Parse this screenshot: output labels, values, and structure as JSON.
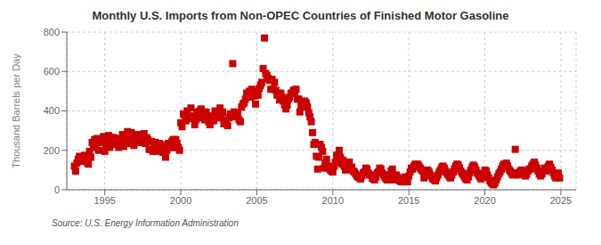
{
  "chart_data": {
    "type": "scatter",
    "title": "Monthly U.S. Imports from Non-OPEC Countries of Finished Motor Gasoline",
    "y_label": "Thousand Barrels per Day",
    "annotations": [
      "Source: U.S. Energy Information Administration"
    ],
    "color": "#CC0000",
    "marker": "square",
    "grid": true,
    "xlim": [
      1992.5,
      2026.0
    ],
    "xticks": [
      1995,
      2000,
      2005,
      2010,
      2015,
      2020,
      2025
    ],
    "ylim": [
      0,
      800
    ],
    "yticks": [
      0,
      200,
      400,
      600,
      800
    ],
    "x": [
      1993.0,
      1993.083,
      1993.167,
      1993.25,
      1993.333,
      1993.417,
      1993.5,
      1993.583,
      1993.667,
      1993.75,
      1993.833,
      1993.917,
      1994.0,
      1994.083,
      1994.167,
      1994.25,
      1994.333,
      1994.417,
      1994.5,
      1994.583,
      1994.667,
      1994.75,
      1994.833,
      1994.917,
      1995.0,
      1995.083,
      1995.167,
      1995.25,
      1995.333,
      1995.417,
      1995.5,
      1995.583,
      1995.667,
      1995.75,
      1995.833,
      1995.917,
      1996.0,
      1996.083,
      1996.167,
      1996.25,
      1996.333,
      1996.417,
      1996.5,
      1996.583,
      1996.667,
      1996.75,
      1996.833,
      1996.917,
      1997.0,
      1997.083,
      1997.167,
      1997.25,
      1997.333,
      1997.417,
      1997.5,
      1997.583,
      1997.667,
      1997.75,
      1997.833,
      1997.917,
      1998.0,
      1998.083,
      1998.167,
      1998.25,
      1998.333,
      1998.417,
      1998.5,
      1998.583,
      1998.667,
      1998.75,
      1998.833,
      1998.917,
      1999.0,
      1999.083,
      1999.167,
      1999.25,
      1999.333,
      1999.417,
      1999.5,
      1999.583,
      1999.667,
      1999.75,
      1999.833,
      1999.917,
      2000.0,
      2000.083,
      2000.167,
      2000.25,
      2000.333,
      2000.417,
      2000.5,
      2000.583,
      2000.667,
      2000.75,
      2000.833,
      2000.917,
      2001.0,
      2001.083,
      2001.167,
      2001.25,
      2001.333,
      2001.417,
      2001.5,
      2001.583,
      2001.667,
      2001.75,
      2001.833,
      2001.917,
      2002.0,
      2002.083,
      2002.167,
      2002.25,
      2002.333,
      2002.417,
      2002.5,
      2002.583,
      2002.667,
      2002.75,
      2002.833,
      2002.917,
      2003.0,
      2003.083,
      2003.167,
      2003.25,
      2003.333,
      2003.417,
      2003.5,
      2003.583,
      2003.667,
      2003.75,
      2003.833,
      2003.917,
      2004.0,
      2004.083,
      2004.167,
      2004.25,
      2004.333,
      2004.417,
      2004.5,
      2004.583,
      2004.667,
      2004.75,
      2004.833,
      2004.917,
      2005.0,
      2005.083,
      2005.167,
      2005.25,
      2005.333,
      2005.417,
      2005.5,
      2005.583,
      2005.667,
      2005.75,
      2005.833,
      2005.917,
      2006.0,
      2006.083,
      2006.167,
      2006.25,
      2006.333,
      2006.417,
      2006.5,
      2006.583,
      2006.667,
      2006.75,
      2006.833,
      2006.917,
      2007.0,
      2007.083,
      2007.167,
      2007.25,
      2007.333,
      2007.417,
      2007.5,
      2007.583,
      2007.667,
      2007.75,
      2007.833,
      2007.917,
      2008.0,
      2008.083,
      2008.167,
      2008.25,
      2008.333,
      2008.417,
      2008.5,
      2008.583,
      2008.667,
      2008.75,
      2008.833,
      2008.917,
      2009.0,
      2009.083,
      2009.167,
      2009.25,
      2009.333,
      2009.417,
      2009.5,
      2009.583,
      2009.667,
      2009.75,
      2009.833,
      2009.917,
      2010.0,
      2010.083,
      2010.167,
      2010.25,
      2010.333,
      2010.417,
      2010.5,
      2010.583,
      2010.667,
      2010.75,
      2010.833,
      2010.917,
      2011.0,
      2011.083,
      2011.167,
      2011.25,
      2011.333,
      2011.417,
      2011.5,
      2011.583,
      2011.667,
      2011.75,
      2011.833,
      2011.917,
      2012.0,
      2012.083,
      2012.167,
      2012.25,
      2012.333,
      2012.417,
      2012.5,
      2012.583,
      2012.667,
      2012.75,
      2012.833,
      2012.917,
      2013.0,
      2013.083,
      2013.167,
      2013.25,
      2013.333,
      2013.417,
      2013.5,
      2013.583,
      2013.667,
      2013.75,
      2013.833,
      2013.917,
      2014.0,
      2014.083,
      2014.167,
      2014.25,
      2014.333,
      2014.417,
      2014.5,
      2014.583,
      2014.667,
      2014.75,
      2014.833,
      2014.917,
      2015.0,
      2015.083,
      2015.167,
      2015.25,
      2015.333,
      2015.417,
      2015.5,
      2015.583,
      2015.667,
      2015.75,
      2015.833,
      2015.917,
      2016.0,
      2016.083,
      2016.167,
      2016.25,
      2016.333,
      2016.417,
      2016.5,
      2016.583,
      2016.667,
      2016.75,
      2016.833,
      2016.917,
      2017.0,
      2017.083,
      2017.167,
      2017.25,
      2017.333,
      2017.417,
      2017.5,
      2017.583,
      2017.667,
      2017.75,
      2017.833,
      2017.917,
      2018.0,
      2018.083,
      2018.167,
      2018.25,
      2018.333,
      2018.417,
      2018.5,
      2018.583,
      2018.667,
      2018.75,
      2018.833,
      2018.917,
      2019.0,
      2019.083,
      2019.167,
      2019.25,
      2019.333,
      2019.417,
      2019.5,
      2019.583,
      2019.667,
      2019.75,
      2019.833,
      2019.917,
      2020.0,
      2020.083,
      2020.167,
      2020.25,
      2020.333,
      2020.417,
      2020.5,
      2020.583,
      2020.667,
      2020.75,
      2020.833,
      2020.917,
      2021.0,
      2021.083,
      2021.167,
      2021.25,
      2021.333,
      2021.417,
      2021.5,
      2021.583,
      2021.667,
      2021.75,
      2021.833,
      2021.917,
      2022.0,
      2022.083,
      2022.167,
      2022.25,
      2022.333,
      2022.417,
      2022.5,
      2022.583,
      2022.667,
      2022.75,
      2022.833,
      2022.917,
      2023.0,
      2023.083,
      2023.167,
      2023.25,
      2023.333,
      2023.417,
      2023.5,
      2023.583,
      2023.667,
      2023.75,
      2023.833,
      2023.917,
      2024.0,
      2024.083,
      2024.167,
      2024.25,
      2024.333,
      2024.417,
      2024.5,
      2024.583,
      2024.667,
      2024.75,
      2024.833,
      2024.917
    ],
    "values": [
      120,
      95,
      135,
      155,
      170,
      145,
      160,
      150,
      175,
      155,
      140,
      130,
      195,
      165,
      240,
      215,
      255,
      225,
      260,
      200,
      240,
      255,
      245,
      270,
      195,
      230,
      255,
      275,
      215,
      265,
      230,
      265,
      255,
      260,
      240,
      215,
      245,
      230,
      280,
      220,
      265,
      255,
      295,
      265,
      235,
      290,
      245,
      225,
      260,
      280,
      255,
      240,
      280,
      260,
      260,
      285,
      235,
      265,
      255,
      205,
      205,
      245,
      195,
      215,
      240,
      195,
      215,
      235,
      230,
      220,
      190,
      210,
      165,
      200,
      235,
      230,
      215,
      245,
      255,
      215,
      255,
      235,
      215,
      200,
      340,
      320,
      385,
      380,
      350,
      400,
      365,
      365,
      415,
      360,
      375,
      330,
      355,
      395,
      365,
      400,
      410,
      370,
      380,
      355,
      395,
      375,
      345,
      330,
      350,
      375,
      350,
      400,
      395,
      365,
      390,
      415,
      365,
      395,
      335,
      350,
      350,
      325,
      365,
      385,
      375,
      640,
      395,
      370,
      390,
      385,
      355,
      345,
      420,
      435,
      440,
      460,
      490,
      470,
      500,
      470,
      510,
      500,
      475,
      435,
      500,
      480,
      515,
      530,
      545,
      615,
      770,
      590,
      580,
      565,
      555,
      510,
      560,
      510,
      545,
      505,
      480,
      490,
      455,
      490,
      470,
      450,
      430,
      410,
      430,
      460,
      470,
      490,
      490,
      505,
      490,
      510,
      460,
      460,
      395,
      425,
      430,
      420,
      450,
      440,
      420,
      390,
      370,
      345,
      290,
      230,
      240,
      170,
      105,
      165,
      230,
      215,
      195,
      110,
      135,
      155,
      120,
      110,
      100,
      95,
      90,
      120,
      140,
      175,
      175,
      200,
      165,
      130,
      150,
      120,
      100,
      125,
      105,
      140,
      110,
      115,
      95,
      90,
      80,
      70,
      65,
      60,
      55,
      70,
      85,
      90,
      110,
      105,
      85,
      75,
      75,
      60,
      55,
      50,
      65,
      85,
      90,
      110,
      105,
      85,
      75,
      65,
      55,
      50,
      60,
      75,
      95,
      105,
      50,
      60,
      75,
      65,
      55,
      45,
      40,
      45,
      55,
      65,
      50,
      40,
      70,
      90,
      110,
      105,
      120,
      130,
      125,
      130,
      120,
      110,
      100,
      95,
      60,
      75,
      90,
      100,
      90,
      75,
      65,
      55,
      50,
      45,
      60,
      75,
      90,
      100,
      115,
      120,
      110,
      95,
      85,
      75,
      65,
      60,
      75,
      90,
      105,
      120,
      130,
      125,
      110,
      95,
      85,
      75,
      65,
      55,
      50,
      65,
      85,
      100,
      115,
      125,
      115,
      100,
      85,
      75,
      65,
      55,
      65,
      80,
      100,
      95,
      75,
      60,
      45,
      35,
      30,
      25,
      35,
      50,
      65,
      80,
      90,
      105,
      120,
      130,
      125,
      135,
      120,
      105,
      95,
      85,
      75,
      85,
      205,
      85,
      75,
      85,
      95,
      100,
      90,
      80,
      70,
      80,
      95,
      105,
      105,
      120,
      130,
      140,
      125,
      110,
      95,
      80,
      70,
      80,
      95,
      110,
      95,
      105,
      120,
      130,
      115,
      100,
      85,
      70,
      60,
      70,
      85,
      60
    ]
  }
}
